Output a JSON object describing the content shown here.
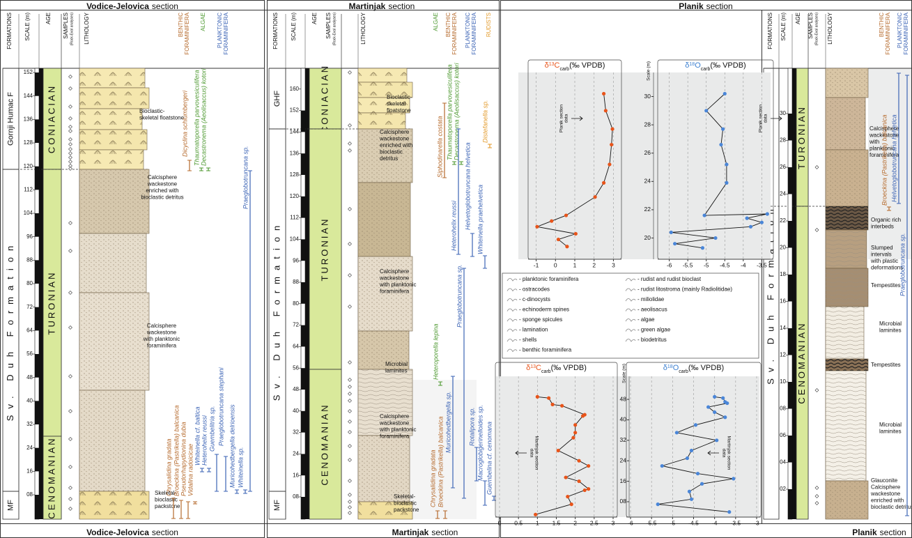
{
  "columns": [
    "FORMATIONS",
    "SCALE (m)",
    "AGE",
    "SAMPLES",
    "(Rock-Eval analyses)",
    "LITHOLOGY"
  ],
  "sections": [
    {
      "name": "Vodice-Jelovica",
      "word": "section",
      "formations": [
        "Gornji Humac F",
        "Sv. Duh Formation",
        "MF"
      ],
      "ages": [
        "CONIACIAN",
        "TURONIAN",
        "CENOMANIAN"
      ],
      "scale": [
        {
          "value": 8,
          "label": "08"
        },
        16,
        24,
        32,
        40,
        48,
        56,
        64,
        72,
        80,
        88,
        96,
        104,
        112,
        120,
        128,
        136,
        144,
        152
      ],
      "groups": [
        {
          "lines": [
            "BENTHIC",
            "FORAMINIFERA"
          ],
          "color": "#b5692b"
        },
        {
          "lines": [
            "ALGAE"
          ],
          "color": "#4f9a32"
        },
        {
          "lines": [
            "PLANKTONIC",
            "FORAMINIFERA"
          ],
          "color": "#3b63b5"
        }
      ],
      "fossils": [
        {
          "name": "Chrysalidina gradata",
          "color": "#b5692b"
        },
        {
          "name": "Broeckina (Pastrikella) balcanica",
          "color": "#b5692b"
        },
        {
          "name": "Pseudorhapydionina dubia",
          "color": "#b5692b"
        },
        {
          "name": "Vidalina radoicicae",
          "color": "#b5692b"
        },
        {
          "name": "Dicyclina schlumbergeri",
          "color": "#b5692b"
        },
        {
          "name": "Thaumatoporella parvovesiculifera",
          "color": "#4f9a32"
        },
        {
          "name": "Decastronema (Aeolisaccus) kotori",
          "color": "#4f9a32"
        },
        {
          "name": "Whiteinella cf. baltica",
          "color": "#3b63b5"
        },
        {
          "name": "Heterohelix reussi",
          "color": "#3b63b5"
        },
        {
          "name": "Guembelitria sp.",
          "color": "#3b63b5"
        },
        {
          "name": "Praeglobotruncana stephani",
          "color": "#3b63b5"
        },
        {
          "name": "Muricohedbergella delrioensis",
          "color": "#3b63b5"
        },
        {
          "name": "Whiteinella sp.",
          "color": "#3b63b5"
        },
        {
          "name": "Praeglobotruncana sp.",
          "color": "#3b63b5"
        }
      ],
      "lithology": [
        [
          "Bioclastic-",
          "skeletal floatstone"
        ],
        [
          "Calcisphere",
          "wackestone",
          "enriched with",
          "bioclastic detritus"
        ],
        [
          "Calcisphere",
          "wackestone",
          "with planktonic",
          "foraminifera"
        ],
        [
          "Skeletal-",
          "bioclastic",
          "packstone"
        ]
      ]
    },
    {
      "name": "Martinjak",
      "word": "section",
      "formations": [
        "GHF",
        "Sv. Duh Formation",
        "MF"
      ],
      "ages": [
        "CONIACIAN",
        "TURONIAN",
        "CENOMANIAN"
      ],
      "scale": [
        {
          "value": 8,
          "label": "08"
        },
        16,
        24,
        32,
        40,
        48,
        56,
        64,
        72,
        80,
        88,
        96,
        104,
        112,
        120,
        128,
        136,
        144,
        152,
        160
      ],
      "groups": [
        {
          "lines": [
            "ALGAE"
          ],
          "color": "#4f9a32"
        },
        {
          "lines": [
            "BENTHIC",
            "FORAMINIFERA"
          ],
          "color": "#b5692b"
        },
        {
          "lines": [
            "PLANKTONIC",
            "FORAMINIFERA"
          ],
          "color": "#3b63b5"
        },
        {
          "lines": [
            "RUDISTS"
          ],
          "color": "#e39a2a"
        }
      ],
      "fossils": [
        {
          "name": "Chrysalidina gradata",
          "color": "#b5692b"
        },
        {
          "name": "Broeckina (Pastrikella) balcanica",
          "color": "#b5692b"
        },
        {
          "name": "Siphodinarella costata",
          "color": "#b5692b"
        },
        {
          "name": "Thaumatoporella parvovesiculifera",
          "color": "#4f9a32"
        },
        {
          "name": "Decastronema (Aeolisaccus) kotori",
          "color": "#4f9a32"
        },
        {
          "name": "Heteroporella lepina",
          "color": "#4f9a32"
        },
        {
          "name": "Distefanella sp.",
          "color": "#e39a2a"
        },
        {
          "name": "Heterohelix reussi",
          "color": "#3b63b5"
        },
        {
          "name": "Helvetoglobotruncana helvetica",
          "color": "#3b63b5"
        },
        {
          "name": "Whiteinella praehelvetica",
          "color": "#3b63b5"
        },
        {
          "name": "Muricohedbergella sp.",
          "color": "#3b63b5"
        },
        {
          "name": "Praeglobotruncana sp.",
          "color": "#3b63b5"
        },
        {
          "name": "Rotalipora sp.",
          "color": "#3b63b5"
        },
        {
          "name": "Macroglobigerinelloides sp.",
          "color": "#3b63b5"
        },
        {
          "name": "Guembelina cf. cenomana",
          "color": "#3b63b5"
        }
      ],
      "lithology": [
        [
          "Bioclastic-",
          "skeletal",
          "floatstone"
        ],
        [
          "Calcisphere",
          "wackestone",
          "enriched with",
          "bioclastic",
          "detritus"
        ],
        [
          "Calcisphere",
          "wackestone",
          "with planktonic",
          "foraminifera"
        ],
        [
          "Microbial",
          "laminites"
        ],
        [
          "Calcisphere",
          "wackestone",
          "with planktonic",
          "foraminifera"
        ],
        [
          "Skeletal-",
          "bioclastic",
          "packstone"
        ]
      ]
    },
    {
      "name": "Planik",
      "word": "section",
      "formations": [
        "Sv. Duh Formation"
      ],
      "ages": [
        "TURONIAN",
        "CENOMANIAN"
      ],
      "scale": [
        {
          "value": 2,
          "label": "02"
        },
        {
          "value": 4,
          "label": "04"
        },
        {
          "value": 6,
          "label": "06"
        },
        {
          "value": 8,
          "label": "08"
        },
        10,
        12,
        14,
        16,
        18,
        20,
        22,
        24,
        26,
        28,
        30
      ],
      "groups": [
        {
          "lines": [
            "BENTHIC",
            "FORAMINIFERA"
          ],
          "color": "#b5692b"
        },
        {
          "lines": [
            "PLANKTONIC",
            "FORAMINIFERA"
          ],
          "color": "#3b63b5"
        }
      ],
      "fossils": [
        {
          "name": "Broeckina (Pastrikella) balcanica",
          "color": "#b5692b"
        },
        {
          "name": "Helvetoglobotruncana helvetica",
          "color": "#3b63b5"
        },
        {
          "name": "Praeglobotruncana sp.",
          "color": "#3b63b5"
        }
      ],
      "lithology": [
        [
          "Calcisphere",
          "wackestone",
          "with",
          "planktonic",
          "foraminifera"
        ],
        [
          "Organic rich",
          "interbeds"
        ],
        [
          "Slumped",
          "intervals",
          "with plastic",
          "deformations"
        ],
        [
          "Tempestites"
        ],
        [
          "Microbial",
          "laminites"
        ],
        [
          "Tempestites"
        ],
        [
          "Microbial",
          "laminites"
        ],
        [
          "Glauconite",
          "Calcisphere",
          "wackestone",
          "enriched with",
          "bioclastic detritus"
        ]
      ]
    }
  ],
  "isotopes": [
    {
      "scale_label": "Scale (m)",
      "note": [
        "Planik section",
        "data"
      ],
      "ylim": [
        18.5,
        31.7
      ],
      "yticks": [
        20,
        22,
        24,
        26,
        28,
        30
      ],
      "panels": [
        {
          "title": [
            "δ",
            "13",
            "C",
            "carb",
            "(‰ VPDB)"
          ],
          "title_color": "#e8541a",
          "color": "#e8541a",
          "xlim": [
            -1.2,
            3.2
          ],
          "xticks": [
            -1,
            0,
            1,
            2,
            3
          ],
          "depths": [
            30.2,
            29,
            27.7,
            26.6,
            25.2,
            23.9,
            22.9,
            21.6,
            21.2,
            20.8,
            20.3,
            19.9,
            19.4
          ],
          "values": [
            2.5,
            2.6,
            2.95,
            2.9,
            2.8,
            2.5,
            2.05,
            0.55,
            -0.2,
            -0.95,
            1.05,
            0.15,
            0.6
          ]
        },
        {
          "title": [
            "δ",
            "18",
            "O",
            "carb",
            "(‰ VPDB)"
          ],
          "title_color": "#3b7fd0",
          "color": "#4a86d8",
          "xlim": [
            -6.2,
            -3.3
          ],
          "xticks": [
            -6,
            -5.5,
            -5,
            -4.5,
            -4,
            -3.5
          ],
          "depths": [
            30.2,
            29,
            27.7,
            26.6,
            25.2,
            23.9,
            21.6,
            21.7,
            21.4,
            21.1,
            20.8,
            20.4,
            20,
            19.6,
            19.3
          ],
          "values": [
            -4.5,
            -5.0,
            -4.55,
            -4.6,
            -4.45,
            -4.45,
            -5.05,
            -3.35,
            -3.9,
            -3.5,
            -3.8,
            -5.95,
            -4.75,
            -5.85,
            -5.1
          ]
        }
      ]
    },
    {
      "scale_label": "Scale (m)",
      "note": [
        "Martinjak section",
        "data"
      ],
      "ylim": [
        2,
        57
      ],
      "yticks": [
        {
          "value": 8,
          "label": "08"
        },
        16,
        24,
        32,
        40,
        48
      ],
      "panels": [
        {
          "title": [
            "δ",
            "13",
            "C",
            "carb",
            "(‰ VPDB)"
          ],
          "title_color": "#e8541a",
          "color": "#e8541a",
          "xlim": [
            0,
            3
          ],
          "xticks": [
            0,
            0.5,
            1,
            1.5,
            2,
            2.5,
            3
          ],
          "depths": [
            49,
            48.5,
            46,
            45.5,
            42,
            41.5,
            38,
            35,
            33,
            28,
            24,
            22,
            17.5,
            16,
            13,
            12.5,
            10,
            7,
            3
          ],
          "values": [
            1.0,
            1.3,
            1.4,
            1.65,
            2.25,
            2.2,
            2.0,
            2.0,
            1.95,
            1.55,
            2.1,
            2.35,
            1.75,
            2.1,
            2.35,
            2.25,
            1.8,
            1.9,
            0.95
          ]
        },
        {
          "title": [
            "δ",
            "18",
            "O",
            "carb",
            "(‰ VPDB)"
          ],
          "title_color": "#3b7fd0",
          "color": "#4a86d8",
          "xlim": [
            -6,
            -3
          ],
          "xticks": [
            -6,
            -5.5,
            -5,
            -4.5,
            -4,
            -3.5,
            -3
          ],
          "depths": [
            49,
            48.5,
            47,
            46.5,
            45,
            43,
            41,
            38,
            35,
            32,
            28,
            25,
            22,
            19,
            17,
            15,
            12,
            9,
            7,
            4
          ],
          "values": [
            -4.0,
            -3.8,
            -3.75,
            -3.7,
            -4.15,
            -4.0,
            -3.75,
            -4.45,
            -4.9,
            -3.95,
            -4.55,
            -4.65,
            -5.25,
            -4.4,
            -3.55,
            -4.3,
            -4.6,
            -4.55,
            -5.35,
            -3.65
          ]
        }
      ]
    }
  ],
  "legend": [
    "- planktonic foraminifera",
    "- ostracodes",
    "- c-dinocysts",
    "- echinoderm spines",
    "- sponge spicules",
    "- lamination",
    "- shells",
    "- benthic foraminifera",
    "- rudist and rudist bioclast",
    "- rudist litostroma (mainly Radiolitidae)",
    "- miliolidae",
    "- aeolisacus",
    "- algae",
    "- green algae",
    "- biodetritus"
  ]
}
